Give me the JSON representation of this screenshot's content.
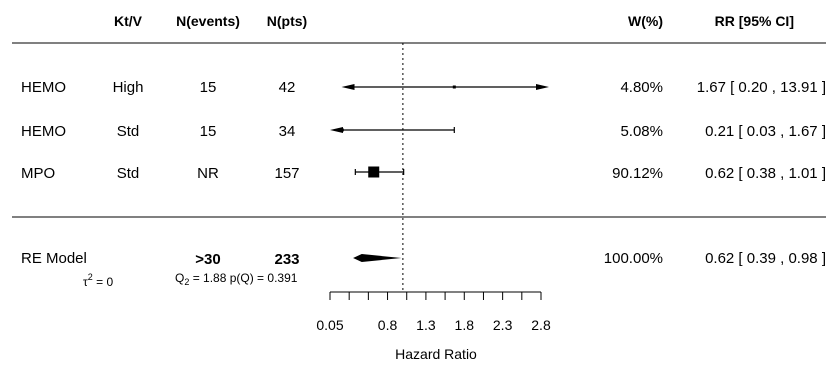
{
  "chart_data": {
    "type": "forest",
    "title": "",
    "columns": {
      "study": "",
      "ktv": "Kt/V",
      "events": "N(events)",
      "pts": "N(pts)",
      "weight": "W(%)",
      "estimate": "RR [95% CI]"
    },
    "rows": [
      {
        "study": "HEMO",
        "ktv": "High",
        "events": "15",
        "pts": "42",
        "weight": "4.80%",
        "rr": 1.67,
        "lo": 0.2,
        "hi": 13.91,
        "ci_text": "1.67 [ 0.20 , 13.91 ]",
        "arrow_right": true,
        "arrow_left": false
      },
      {
        "study": "HEMO",
        "ktv": "Std",
        "events": "15",
        "pts": "34",
        "weight": "5.08%",
        "rr": 0.21,
        "lo": 0.03,
        "hi": 1.67,
        "ci_text": "0.21 [ 0.03 , 1.67 ]",
        "arrow_right": false,
        "arrow_left": true
      },
      {
        "study": "MPO",
        "ktv": "Std",
        "events": "NR",
        "pts": "157",
        "weight": "90.12%",
        "rr": 0.62,
        "lo": 0.38,
        "hi": 1.01,
        "ci_text": "0.62 [ 0.38 , 1.01 ]",
        "arrow_right": false,
        "arrow_left": false
      }
    ],
    "summary": {
      "label": "RE Model",
      "events": ">30",
      "pts": "233",
      "weight": "100.00%",
      "rr": 0.62,
      "lo": 0.39,
      "hi": 0.98,
      "ci_text": "0.62 [ 0.39 , 0.98 ]",
      "tau_label": "τ",
      "tau_sup": "2",
      "tau_value": " = 0",
      "q_label": "Q",
      "q_sub": "2",
      "q_value": " = 1.88 p(Q) = 0.391"
    },
    "reference_line": 1.0,
    "x_axis": {
      "title": "Hazard Ratio",
      "ticks": [
        0.05,
        0.8,
        1.3,
        1.8,
        2.3,
        2.8
      ],
      "tick_labels": [
        "0.05",
        "0.8",
        "1.3",
        "1.8",
        "2.3",
        "2.8"
      ],
      "minor_ticks": [
        0.05,
        0.3,
        0.55,
        0.8,
        1.05,
        1.3,
        1.55,
        1.8,
        2.05,
        2.3,
        2.55,
        2.8
      ],
      "range": [
        0.05,
        2.8
      ]
    }
  }
}
